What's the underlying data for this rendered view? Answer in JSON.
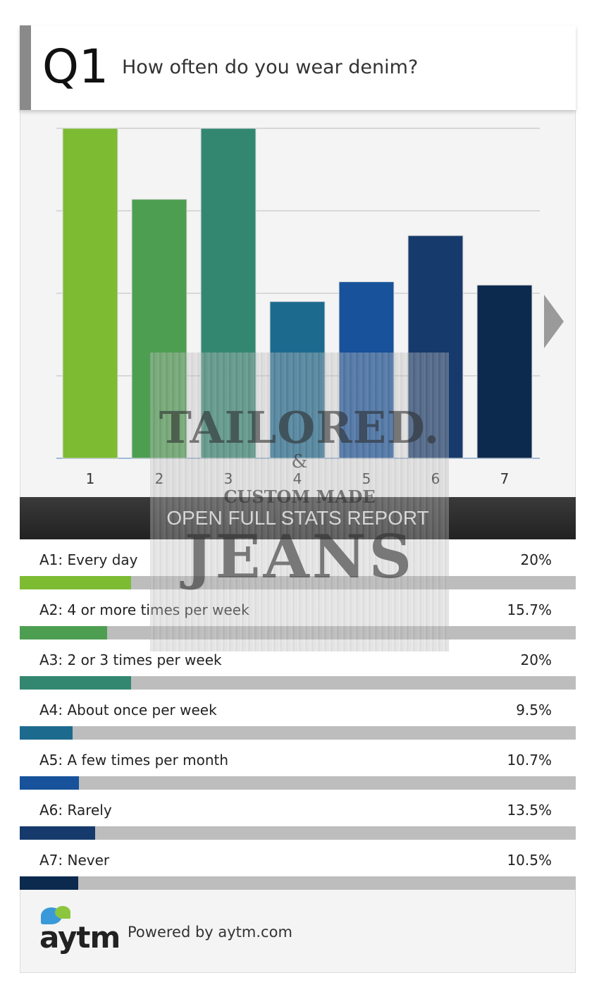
{
  "question": {
    "number": "Q1",
    "text": "How often do you wear denim?"
  },
  "chart_data": {
    "type": "bar",
    "categories": [
      "1",
      "2",
      "3",
      "4",
      "5",
      "6",
      "7"
    ],
    "values": [
      20,
      15.7,
      20,
      9.5,
      10.7,
      13.5,
      10.5
    ],
    "ylim": [
      0,
      20
    ],
    "grid": true,
    "colors": [
      "#7dbb33",
      "#4e9e52",
      "#338770",
      "#1d6a8f",
      "#17529a",
      "#173a6c",
      "#0c2a4e"
    ]
  },
  "next_arrow": {
    "icon": "chevron-right-icon"
  },
  "open_report_label": "OPEN FULL STATS REPORT",
  "answers": [
    {
      "label": "A1: Every day",
      "percent_text": "20%",
      "percent": 20
    },
    {
      "label": "A2: 4 or more times per week",
      "percent_text": "15.7%",
      "percent": 15.7
    },
    {
      "label": "A3: 2 or 3 times per week",
      "percent_text": "20%",
      "percent": 20
    },
    {
      "label": "A4: About once per week",
      "percent_text": "9.5%",
      "percent": 9.5
    },
    {
      "label": "A5: A few times per month",
      "percent_text": "10.7%",
      "percent": 10.7
    },
    {
      "label": "A6: Rarely",
      "percent_text": "13.5%",
      "percent": 13.5
    },
    {
      "label": "A7: Never",
      "percent_text": "10.5%",
      "percent": 10.5
    }
  ],
  "footer": {
    "logo_text": "aytm",
    "powered_text": "Powered by aytm.com"
  },
  "watermark": {
    "line1": "TAILORED.",
    "line2": "&",
    "line3": "CUSTOM MADE",
    "line4": "JEANS"
  }
}
